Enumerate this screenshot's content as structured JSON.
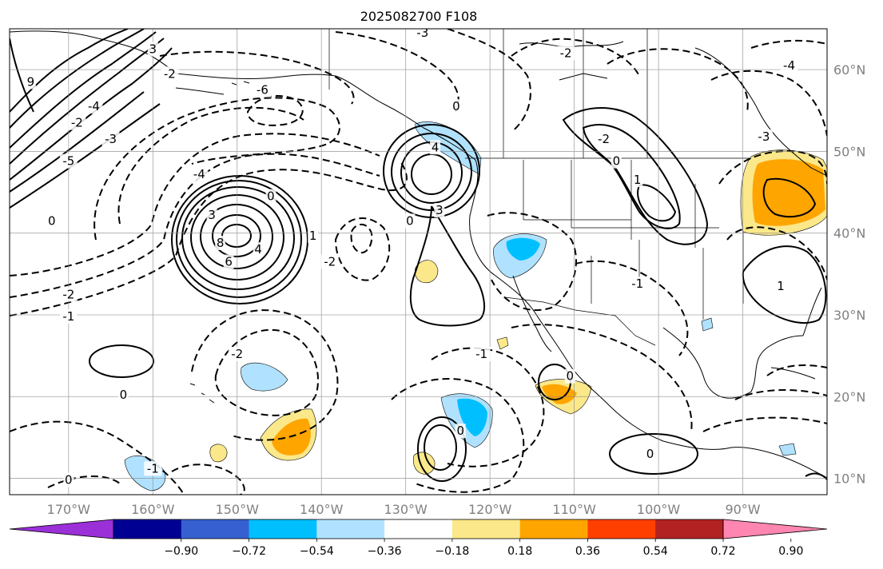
{
  "title": "2025082700 F108",
  "map": {
    "lon_range": [
      -177,
      -80
    ],
    "lat_range": [
      8,
      65
    ],
    "latitude_labels": [
      "60°N",
      "50°N",
      "40°N",
      "30°N",
      "20°N",
      "10°N"
    ],
    "longitude_labels": [
      "170°W",
      "160°W",
      "150°W",
      "140°W",
      "130°W",
      "120°W",
      "110°W",
      "100°W",
      "90°W"
    ],
    "grid": true,
    "contour_labels": [
      {
        "text": "0",
        "lon": -163.5,
        "lat": 20.2
      },
      {
        "text": "0",
        "lon": -170,
        "lat": 9.8
      },
      {
        "text": "0",
        "lon": -172,
        "lat": 41.5
      },
      {
        "text": "0",
        "lon": -146,
        "lat": 44.5
      },
      {
        "text": "0",
        "lon": -124,
        "lat": 55.5
      },
      {
        "text": "0",
        "lon": -129.5,
        "lat": 41.5
      },
      {
        "text": "0",
        "lon": -123.5,
        "lat": 15.8
      },
      {
        "text": "0",
        "lon": -110.5,
        "lat": 22.5
      },
      {
        "text": "0",
        "lon": -105,
        "lat": 48.8
      },
      {
        "text": "0",
        "lon": -101,
        "lat": 13
      },
      {
        "text": "-1",
        "lon": -170,
        "lat": 29.8
      },
      {
        "text": "-1",
        "lon": -160,
        "lat": 11.2
      },
      {
        "text": "-1",
        "lon": -121,
        "lat": 25.2
      },
      {
        "text": "-1",
        "lon": -102.5,
        "lat": 33.8
      },
      {
        "text": "1",
        "lon": -141,
        "lat": 39.7
      },
      {
        "text": "1",
        "lon": -102.5,
        "lat": 46.5
      },
      {
        "text": "1",
        "lon": -85.5,
        "lat": 33.5
      },
      {
        "text": "-2",
        "lon": -170,
        "lat": 32.5
      },
      {
        "text": "-2",
        "lon": -150,
        "lat": 25.2
      },
      {
        "text": "-2",
        "lon": -139,
        "lat": 36.5
      },
      {
        "text": "-2",
        "lon": -158,
        "lat": 59.5
      },
      {
        "text": "-2",
        "lon": -111,
        "lat": 62
      },
      {
        "text": "-2",
        "lon": -106.5,
        "lat": 51.5
      },
      {
        "text": "-2",
        "lon": -169,
        "lat": 53.5
      },
      {
        "text": "-3",
        "lon": -165,
        "lat": 51.5
      },
      {
        "text": "-3",
        "lon": -87.5,
        "lat": 51.8
      },
      {
        "text": "-3",
        "lon": -128,
        "lat": 64.5
      },
      {
        "text": "3",
        "lon": -153,
        "lat": 42.2
      },
      {
        "text": "3",
        "lon": -126,
        "lat": 42.8
      },
      {
        "text": "3",
        "lon": -160,
        "lat": 62.5
      },
      {
        "text": "-4",
        "lon": -167,
        "lat": 55.5
      },
      {
        "text": "-4",
        "lon": -154.5,
        "lat": 47.2
      },
      {
        "text": "-4",
        "lon": -84.5,
        "lat": 60.5
      },
      {
        "text": "4",
        "lon": -147.5,
        "lat": 38
      },
      {
        "text": "4",
        "lon": -126.5,
        "lat": 50.5
      },
      {
        "text": "-5",
        "lon": -170,
        "lat": 48.8
      },
      {
        "text": "-6",
        "lon": -147,
        "lat": 57.5
      },
      {
        "text": "6",
        "lon": -151,
        "lat": 36.5
      },
      {
        "text": "8",
        "lon": -152,
        "lat": 38.8
      },
      {
        "text": "9",
        "lon": -174.5,
        "lat": 58.5
      }
    ]
  },
  "colorbar": {
    "colors": [
      "#9b30d8",
      "#000092",
      "#3660d0",
      "#00bfff",
      "#b0e2ff",
      "#ffffff",
      "#fbe88a",
      "#ffa500",
      "#ff3f00",
      "#b22222",
      "#ff86b0"
    ],
    "tick_labels": [
      "−0.90",
      "−0.72",
      "−0.54",
      "−0.36",
      "−0.18",
      "0.18",
      "0.36",
      "0.54",
      "0.72",
      "0.90"
    ]
  }
}
